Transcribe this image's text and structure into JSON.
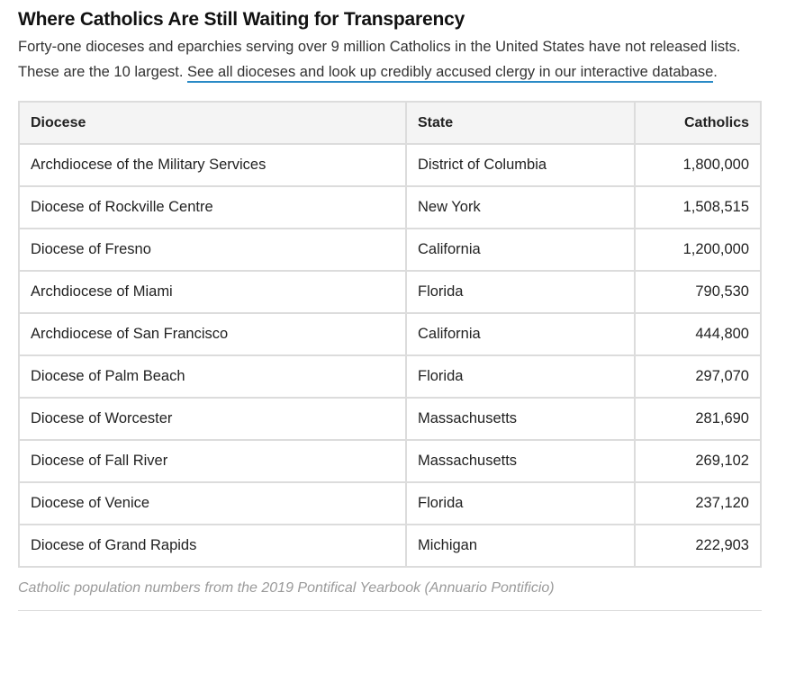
{
  "title": "Where Catholics Are Still Waiting for Transparency",
  "intro": {
    "text": "Forty-one dioceses and eparchies serving over 9 million Catholics in the United States have not released lists. These are the 10 largest. ",
    "link": "See all dioceses and look up credibly accused clergy in our interactive database",
    "end": "."
  },
  "table": {
    "headers": {
      "diocese": "Diocese",
      "state": "State",
      "catholics": "Catholics"
    },
    "rows": [
      {
        "diocese": "Archdiocese of the Military Services",
        "state": "District of Columbia",
        "catholics": "1,800,000"
      },
      {
        "diocese": "Diocese of Rockville Centre",
        "state": "New York",
        "catholics": "1,508,515"
      },
      {
        "diocese": "Diocese of Fresno",
        "state": "California",
        "catholics": "1,200,000"
      },
      {
        "diocese": "Archdiocese of Miami",
        "state": "Florida",
        "catholics": "790,530"
      },
      {
        "diocese": "Archdiocese of San Francisco",
        "state": "California",
        "catholics": "444,800"
      },
      {
        "diocese": "Diocese of Palm Beach",
        "state": "Florida",
        "catholics": "297,070"
      },
      {
        "diocese": "Diocese of Worcester",
        "state": "Massachusetts",
        "catholics": "281,690"
      },
      {
        "diocese": "Diocese of Fall River",
        "state": "Massachusetts",
        "catholics": "269,102"
      },
      {
        "diocese": "Diocese of Venice",
        "state": "Florida",
        "catholics": "237,120"
      },
      {
        "diocese": "Diocese of Grand Rapids",
        "state": "Michigan",
        "catholics": "222,903"
      }
    ]
  },
  "note": "Catholic population numbers from the 2019 Pontifical Yearbook (Annuario Pontificio)",
  "colors": {
    "link_underline": "#2a8ac6",
    "border": "#dcdcdc",
    "header_bg": "#f4f4f4",
    "note": "#9a9a9a"
  }
}
